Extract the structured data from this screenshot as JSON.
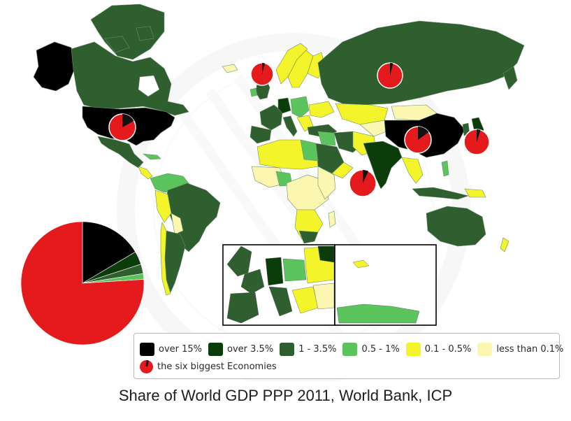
{
  "legend": {
    "items": [
      {
        "label": "over 15%",
        "color": "#000000"
      },
      {
        "label": "over 3.5%",
        "color": "#0b3d0b"
      },
      {
        "label": "1 - 3.5%",
        "color": "#2f5e2f"
      },
      {
        "label": "0.5 - 1%",
        "color": "#5cc45c"
      },
      {
        "label": "0.1 - 0.5%",
        "color": "#f4f42a"
      },
      {
        "label": "less than 0.1%",
        "color": "#fbf7b0"
      }
    ],
    "economies_label": "the six biggest Economies",
    "economies_color": "#e41a1c"
  },
  "caption": "Share of World GDP PPP 2011, World Bank, ICP",
  "big_pie": {
    "slices": [
      {
        "value": 76,
        "color": "#e41a1c"
      },
      {
        "value": 16.5,
        "color": "#000000"
      },
      {
        "value": 3.5,
        "color": "#0b3d0b"
      },
      {
        "value": 2.5,
        "color": "#2f5e2f"
      },
      {
        "value": 1.5,
        "color": "#5cc45c"
      }
    ]
  },
  "economy_pies": [
    {
      "country": "United States",
      "share": 0.17
    },
    {
      "country": "China",
      "share": 0.15
    },
    {
      "country": "India",
      "share": 0.07
    },
    {
      "country": "Japan",
      "share": 0.05
    },
    {
      "country": "Russia",
      "share": 0.04
    },
    {
      "country": "Germany",
      "share": 0.04
    }
  ]
}
